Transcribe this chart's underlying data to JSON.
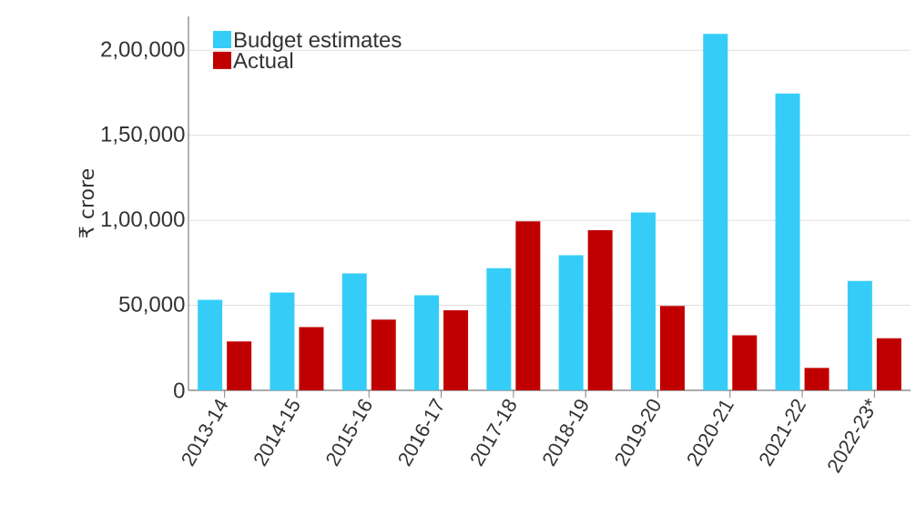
{
  "chart_data": {
    "type": "bar",
    "ylabel": "₹ crore",
    "categories": [
      "2013-14",
      "2014-15",
      "2015-16",
      "2016-17",
      "2017-18",
      "2018-19",
      "2019-20",
      "2020-21",
      "2021-22",
      "2022-23*"
    ],
    "series": [
      {
        "name": "Budget estimates",
        "color": "#35cdf8",
        "values": [
          53300,
          57600,
          68800,
          56000,
          71800,
          79500,
          104700,
          209700,
          174600,
          64400
        ]
      },
      {
        "name": "Actual",
        "color": "#c00000",
        "values": [
          28800,
          37200,
          41600,
          47100,
          99400,
          94200,
          49600,
          32400,
          13200,
          30600
        ]
      }
    ],
    "ylim": [
      0,
      220000
    ],
    "yticks": [
      0,
      {
        "value": 50000,
        "label": "50,000"
      },
      {
        "value": 100000,
        "label": "1,00,000"
      },
      {
        "value": 150000,
        "label": "1,50,000"
      },
      {
        "value": 200000,
        "label": "2,00,000"
      }
    ],
    "grid": "y",
    "legend": "top left"
  }
}
